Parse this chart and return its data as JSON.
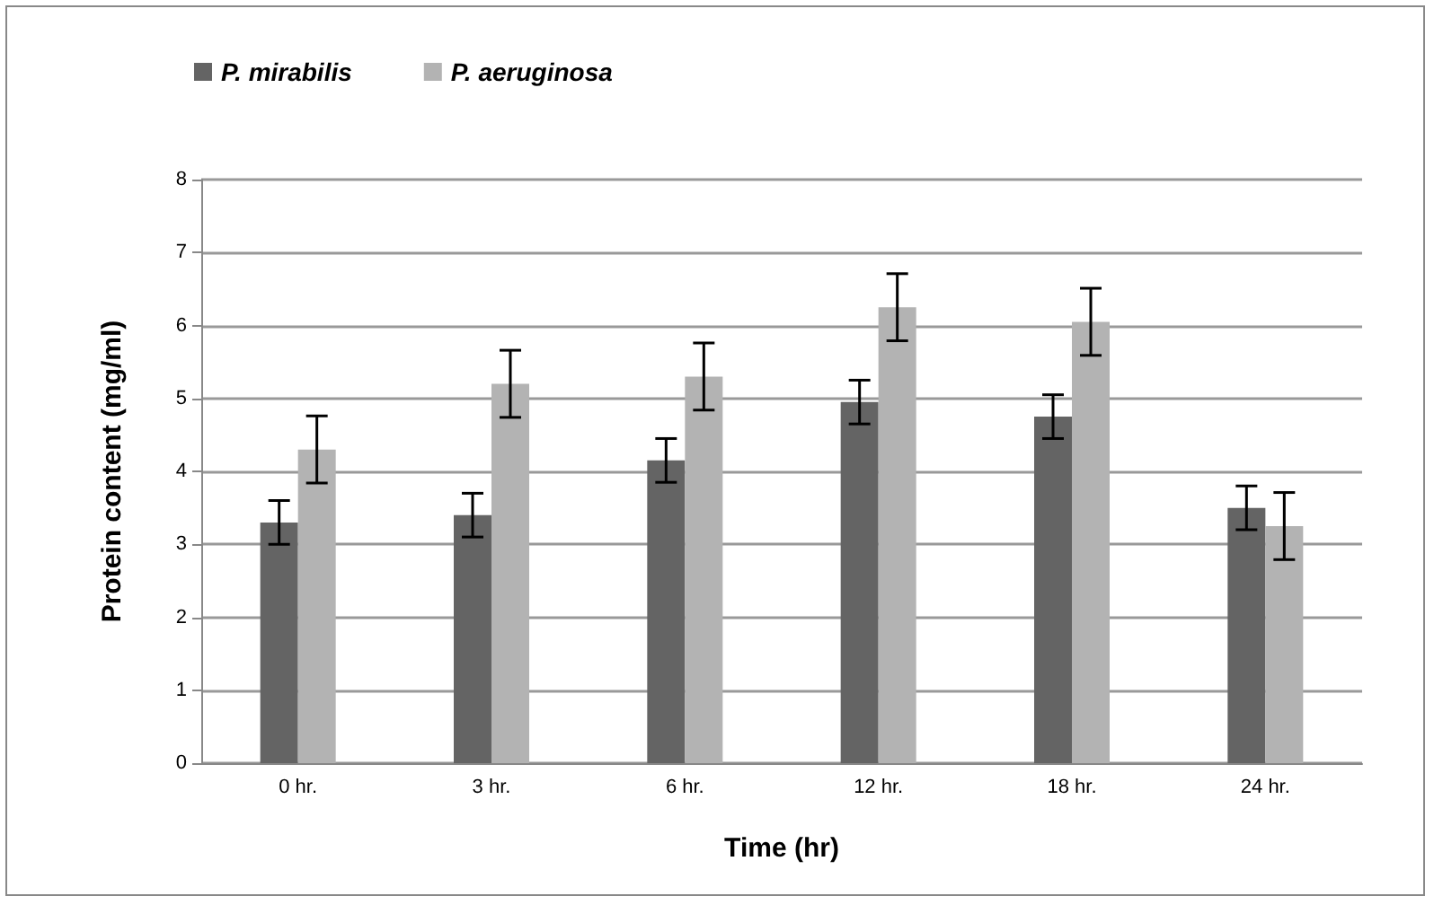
{
  "chart_data": {
    "type": "bar",
    "xlabel": "Time (hr)",
    "ylabel": "Protein content (mg/ml)",
    "categories": [
      "0 hr.",
      "3 hr.",
      "6 hr.",
      "12 hr.",
      "18 hr.",
      "24 hr."
    ],
    "series": [
      {
        "name": "P. mirabilis",
        "color": "#646464",
        "values": [
          3.3,
          3.4,
          4.15,
          4.95,
          4.75,
          3.5
        ],
        "errors": [
          0.3,
          0.3,
          0.3,
          0.3,
          0.3,
          0.3
        ]
      },
      {
        "name": "P. aeruginosa",
        "color": "#b3b3b3",
        "values": [
          4.3,
          5.2,
          5.3,
          6.25,
          6.05,
          3.25
        ],
        "errors": [
          0.46,
          0.46,
          0.46,
          0.46,
          0.46,
          0.46
        ]
      }
    ],
    "ylim": [
      0,
      8
    ],
    "yticks": [
      0,
      1,
      2,
      3,
      4,
      5,
      6,
      7,
      8
    ],
    "grid": "y",
    "legend": "top left"
  }
}
